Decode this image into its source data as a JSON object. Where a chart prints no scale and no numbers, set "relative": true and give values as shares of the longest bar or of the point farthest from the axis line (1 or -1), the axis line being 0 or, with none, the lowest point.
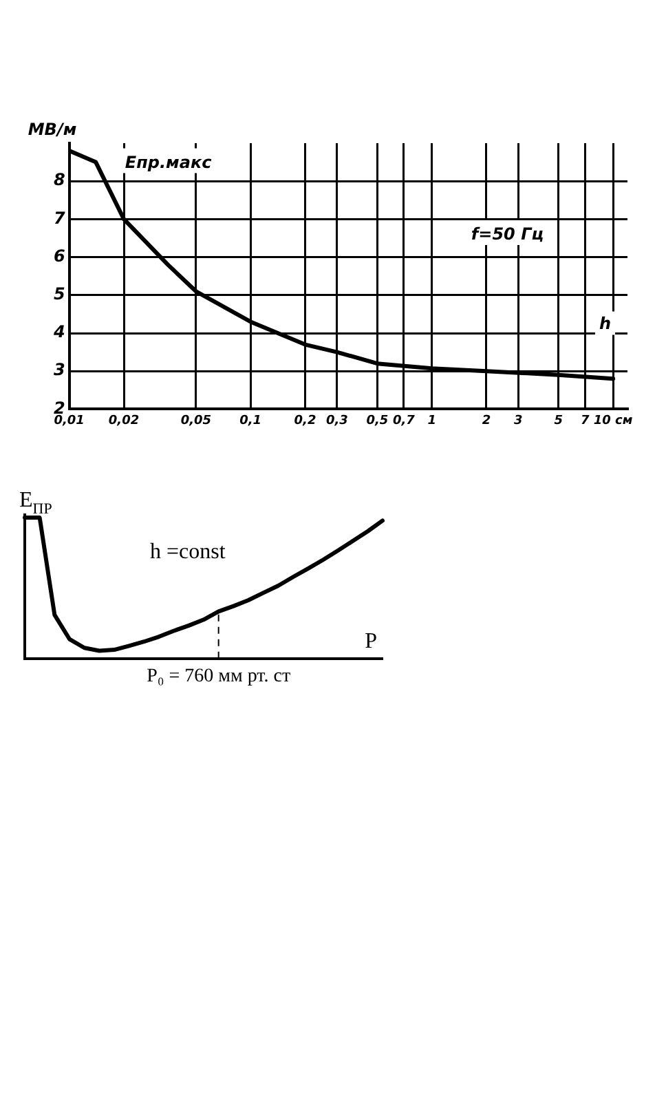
{
  "chart_data": [
    {
      "type": "line",
      "xlabel": "h",
      "ylabel": "МВ/м",
      "annotations": [
        "Eпр.макс",
        "f=50 Гц"
      ],
      "log": "x",
      "grid": true,
      "marker": "none",
      "xlim": [
        0.01,
        12
      ],
      "ylim": [
        2,
        9
      ],
      "xticks": [
        {
          "value": 0.01,
          "label": "0,01"
        },
        {
          "value": 0.02,
          "label": "0,02"
        },
        {
          "value": 0.05,
          "label": "0,05"
        },
        {
          "value": 0.1,
          "label": "0,1"
        },
        {
          "value": 0.2,
          "label": "0,2"
        },
        {
          "value": 0.3,
          "label": "0,3"
        },
        {
          "value": 0.5,
          "label": "0,5"
        },
        {
          "value": 0.7,
          "label": "0,7"
        },
        1,
        2,
        3,
        5,
        7,
        {
          "value": 10,
          "label": "10 см"
        }
      ],
      "yticks": [
        2,
        3,
        4,
        5,
        6,
        7,
        8
      ],
      "series": [
        {
          "color": "#000000",
          "x": [
            0.01,
            0.014,
            0.02,
            0.035,
            0.05,
            0.1,
            0.2,
            0.3,
            0.5,
            1,
            2,
            5,
            10
          ],
          "values": [
            8.8,
            8.5,
            7.0,
            5.8,
            5.1,
            4.3,
            3.7,
            3.5,
            3.2,
            3.07,
            3.0,
            2.9,
            2.8
          ]
        }
      ]
    },
    {
      "type": "line",
      "relative": true,
      "xlabel": "P",
      "ylabel": "E$_{ПР}$",
      "annotations": [
        "h =const"
      ],
      "marker": "none",
      "categories": [
        null,
        null,
        null,
        null,
        null,
        null,
        null,
        null,
        null,
        null,
        null,
        null,
        null,
        null,
        null,
        null,
        null,
        null,
        null,
        null,
        null,
        null,
        null,
        null,
        null
      ],
      "ref_lines": [
        {
          "axis": "x",
          "label": "P₀ = 760 мм рт. ст",
          "line_style": "dashed"
        }
      ],
      "series": [
        {
          "color": "#000000",
          "values": [
            1.0,
            1.0,
            0.31,
            0.138,
            0.076,
            0.055,
            0.062,
            0.09,
            0.12,
            0.155,
            0.197,
            0.234,
            0.276,
            0.334,
            0.372,
            0.414,
            0.466,
            0.517,
            0.579,
            0.638,
            0.7,
            0.766,
            0.834,
            0.903,
            0.979
          ]
        }
      ]
    }
  ]
}
